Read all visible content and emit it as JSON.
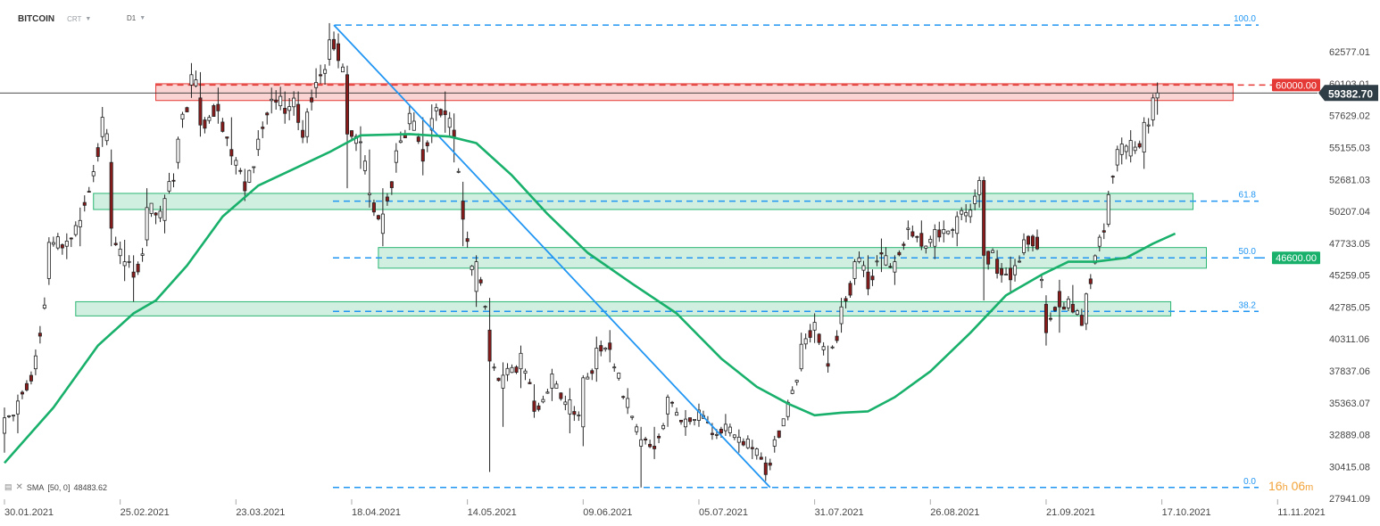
{
  "header": {
    "symbol": "BITCOIN",
    "type": "CRT",
    "timeframe": "D1"
  },
  "indicator": {
    "label": "SMA",
    "params": "[50, 0]",
    "value": "48483.62"
  },
  "timer": {
    "hours": "16",
    "h": "h",
    "minutes": "06",
    "m": "m"
  },
  "colors": {
    "up": "#ffffff",
    "down": "#8b1a1a",
    "wick": "#222222",
    "sma": "#18b06b",
    "fib": "#2196f3",
    "resistance": "#e53935",
    "zone": "#2bb673",
    "priceLabel": "#2f3e46",
    "level46600": "#18b06b"
  },
  "chart_data": {
    "type": "candlestick",
    "instrument": "BITCOIN",
    "timeframe": "D1",
    "ylim": [
      27941.09,
      65051
    ],
    "y_ticks": [
      62577.01,
      60103.01,
      57629.02,
      55155.03,
      52681.03,
      50207.04,
      47733.05,
      45259.05,
      42785.05,
      40311.06,
      37837.06,
      35363.07,
      32889.08,
      30415.08,
      27941.09
    ],
    "y_tick_labels": [
      "62577.01",
      "60103.01",
      "57629.02",
      "55155.03",
      "52681.03",
      "50207.04",
      "47733.05",
      "45259.05",
      "42785.05",
      "40311.06",
      "37837.06",
      "35363.07",
      "32889.08",
      "30415.08",
      "27941.09"
    ],
    "x_tick_labels": [
      "30.01.2021",
      "25.02.2021",
      "23.03.2021",
      "18.04.2021",
      "14.05.2021",
      "09.06.2021",
      "05.07.2021",
      "31.07.2021",
      "26.08.2021",
      "21.09.2021",
      "17.10.2021",
      "11.11.2021"
    ],
    "x_start_date": "2021-01-30",
    "tick_step_days": 26,
    "last_price": "59382.70",
    "resistance": {
      "label": "60000.00",
      "value": 60000,
      "zone": [
        58800,
        60100
      ],
      "start": "2021-03-05",
      "end": "2021-11-02"
    },
    "support_line": {
      "label": "46600.00",
      "value": 46600
    },
    "fib_levels": [
      {
        "label": "100.0",
        "value": 64650
      },
      {
        "label": "61.8",
        "value": 51000
      },
      {
        "label": "50.0",
        "value": 46600
      },
      {
        "label": "38.2",
        "value": 42450
      },
      {
        "label": "0.0",
        "value": 28800
      }
    ],
    "zones": [
      {
        "low": 50350,
        "high": 51600,
        "start": "2021-02-19",
        "end": "2021-10-24"
      },
      {
        "low": 45800,
        "high": 47400,
        "start": "2021-04-24",
        "end": "2021-10-27"
      },
      {
        "low": 42100,
        "high": 43200,
        "start": "2021-02-15",
        "end": "2021-10-19"
      }
    ],
    "trendline": {
      "from": {
        "date": "2021-04-14",
        "value": 64650
      },
      "to": {
        "date": "2021-07-21",
        "value": 28800
      }
    },
    "ohlc_anchors": [
      [
        "2021-01-30",
        33000,
        35000,
        31500,
        34200
      ],
      [
        "2021-02-02",
        34500,
        36000,
        33000,
        35500
      ],
      [
        "2021-02-06",
        38000,
        39500,
        37500,
        39000
      ],
      [
        "2021-02-09",
        45000,
        48200,
        44500,
        47800
      ],
      [
        "2021-02-13",
        47500,
        48500,
        46500,
        47900
      ],
      [
        "2021-02-16",
        49000,
        50500,
        47500,
        49500
      ],
      [
        "2021-02-21",
        56000,
        58300,
        55200,
        57500
      ],
      [
        "2021-02-23",
        54000,
        55000,
        47500,
        48900
      ],
      [
        "2021-02-26",
        46000,
        48000,
        44800,
        46300
      ],
      [
        "2021-02-28",
        45500,
        46800,
        43200,
        45100
      ],
      [
        "2021-03-03",
        48000,
        52000,
        47500,
        50500
      ],
      [
        "2021-03-07",
        49500,
        51500,
        48500,
        51200
      ],
      [
        "2021-03-10",
        54000,
        56000,
        53500,
        55800
      ],
      [
        "2021-03-13",
        60000,
        61700,
        59000,
        60800
      ],
      [
        "2021-03-15",
        59000,
        61000,
        56000,
        56900
      ],
      [
        "2021-03-19",
        58500,
        59800,
        57000,
        58000
      ],
      [
        "2021-03-22",
        55000,
        57500,
        53800,
        54500
      ],
      [
        "2021-03-25",
        52500,
        53500,
        51000,
        51800
      ],
      [
        "2021-03-28",
        55000,
        56500,
        54500,
        55800
      ],
      [
        "2021-03-31",
        58800,
        59800,
        57800,
        58900
      ],
      [
        "2021-04-03",
        58200,
        59500,
        57000,
        57800
      ],
      [
        "2021-04-06",
        58500,
        59500,
        56500,
        57100
      ],
      [
        "2021-04-08",
        56000,
        58200,
        55500,
        57900
      ],
      [
        "2021-04-10",
        59800,
        61300,
        59000,
        60200
      ],
      [
        "2021-04-13",
        62000,
        64800,
        61500,
        63500
      ],
      [
        "2021-04-15",
        63200,
        64000,
        61300,
        61900
      ],
      [
        "2021-04-17",
        60800,
        61500,
        52000,
        56200
      ],
      [
        "2021-04-20",
        55600,
        56800,
        53500,
        55600
      ],
      [
        "2021-04-22",
        51500,
        55000,
        50500,
        51600
      ],
      [
        "2021-04-25",
        48500,
        52000,
        47500,
        50000
      ],
      [
        "2021-04-28",
        54000,
        55500,
        53200,
        54900
      ],
      [
        "2021-05-01",
        57000,
        58500,
        56500,
        57800
      ],
      [
        "2021-05-04",
        55000,
        57500,
        53000,
        54100
      ],
      [
        "2021-05-06",
        56500,
        58500,
        55500,
        57400
      ],
      [
        "2021-05-09",
        58000,
        59500,
        56300,
        57700
      ],
      [
        "2021-05-11",
        56500,
        57800,
        54000,
        56000
      ],
      [
        "2021-05-13",
        51000,
        52500,
        47500,
        49600
      ],
      [
        "2021-05-16",
        44000,
        46800,
        42800,
        46300
      ],
      [
        "2021-05-19",
        41000,
        43500,
        30000,
        38600
      ],
      [
        "2021-05-22",
        36500,
        38500,
        33500,
        37500
      ],
      [
        "2021-05-26",
        38000,
        39800,
        36500,
        39200
      ],
      [
        "2021-05-29",
        35500,
        36800,
        34200,
        34700
      ],
      [
        "2021-06-02",
        36500,
        38000,
        35500,
        37600
      ],
      [
        "2021-06-06",
        34500,
        36500,
        33000,
        35600
      ],
      [
        "2021-06-09",
        33500,
        37500,
        32000,
        37300
      ],
      [
        "2021-06-12",
        38000,
        40500,
        37000,
        39600
      ],
      [
        "2021-06-15",
        40000,
        41000,
        38500,
        39500
      ],
      [
        "2021-06-19",
        35000,
        36500,
        34500,
        35700
      ],
      [
        "2021-06-22",
        32000,
        33500,
        28800,
        32500
      ],
      [
        "2021-06-25",
        32000,
        33500,
        31000,
        31800
      ],
      [
        "2021-06-28",
        34500,
        36000,
        33500,
        35800
      ],
      [
        "2021-07-02",
        33500,
        34800,
        32800,
        34100
      ],
      [
        "2021-07-05",
        34000,
        35300,
        33500,
        34800
      ],
      [
        "2021-07-08",
        33000,
        33800,
        32500,
        32900
      ],
      [
        "2021-07-11",
        33200,
        34500,
        32800,
        33700
      ],
      [
        "2021-07-14",
        32300,
        33300,
        31500,
        32700
      ],
      [
        "2021-07-17",
        31900,
        32500,
        31000,
        31800
      ],
      [
        "2021-07-20",
        30700,
        31200,
        29300,
        29800
      ],
      [
        "2021-07-22",
        32000,
        32800,
        31500,
        32500
      ],
      [
        "2021-07-25",
        34300,
        35600,
        34000,
        35400
      ],
      [
        "2021-07-28",
        38000,
        40800,
        37800,
        39900
      ],
      [
        "2021-07-31",
        41000,
        42300,
        40000,
        41600
      ],
      [
        "2021-08-03",
        38400,
        39800,
        37700,
        38200
      ],
      [
        "2021-08-06",
        41500,
        43500,
        40800,
        42800
      ],
      [
        "2021-08-09",
        45000,
        46500,
        44500,
        46300
      ],
      [
        "2021-08-12",
        45500,
        46800,
        43700,
        44200
      ],
      [
        "2021-08-15",
        47000,
        48100,
        45500,
        46900
      ],
      [
        "2021-08-18",
        45500,
        46800,
        44500,
        46300
      ],
      [
        "2021-08-21",
        48800,
        49500,
        48000,
        48900
      ],
      [
        "2021-08-24",
        48500,
        49500,
        47200,
        47500
      ],
      [
        "2021-08-27",
        47500,
        49200,
        46500,
        48800
      ],
      [
        "2021-08-29",
        48500,
        49500,
        47800,
        48800
      ],
      [
        "2021-09-01",
        48500,
        50200,
        47500,
        49800
      ],
      [
        "2021-09-04",
        49800,
        50800,
        49300,
        50300
      ],
      [
        "2021-09-06",
        51500,
        52900,
        50500,
        52600
      ],
      [
        "2021-09-07",
        52600,
        52900,
        43300,
        46800
      ],
      [
        "2021-09-10",
        46500,
        47200,
        45000,
        45400
      ],
      [
        "2021-09-13",
        45800,
        46700,
        44000,
        44900
      ],
      [
        "2021-09-16",
        47000,
        48500,
        46800,
        48000
      ],
      [
        "2021-09-19",
        48200,
        48800,
        47200,
        47300
      ],
      [
        "2021-09-21",
        43000,
        43700,
        39800,
        40800
      ],
      [
        "2021-09-24",
        44000,
        44900,
        40800,
        42800
      ],
      [
        "2021-09-27",
        43000,
        44500,
        42300,
        42400
      ],
      [
        "2021-09-30",
        41500,
        43900,
        41000,
        43800
      ],
      [
        "2021-10-03",
        47500,
        48400,
        47100,
        48200
      ],
      [
        "2021-10-05",
        49200,
        51800,
        49000,
        51500
      ],
      [
        "2021-10-07",
        53800,
        55300,
        53300,
        55000
      ],
      [
        "2021-10-10",
        54500,
        56500,
        54000,
        55700
      ],
      [
        "2021-10-13",
        54800,
        57500,
        53500,
        57100
      ],
      [
        "2021-10-15",
        57300,
        59300,
        56800,
        59000
      ],
      [
        "2021-10-16",
        59000,
        60200,
        57700,
        59382.7
      ]
    ],
    "sma_anchors": [
      [
        "2021-01-30",
        30700
      ],
      [
        "2021-02-10",
        35000
      ],
      [
        "2021-02-20",
        39800
      ],
      [
        "2021-02-28",
        42300
      ],
      [
        "2021-03-05",
        43300
      ],
      [
        "2021-03-12",
        46000
      ],
      [
        "2021-03-20",
        49800
      ],
      [
        "2021-03-28",
        52200
      ],
      [
        "2021-04-05",
        53500
      ],
      [
        "2021-04-13",
        54800
      ],
      [
        "2021-04-20",
        56100
      ],
      [
        "2021-05-01",
        56200
      ],
      [
        "2021-05-10",
        56000
      ],
      [
        "2021-05-16",
        55500
      ],
      [
        "2021-05-24",
        53000
      ],
      [
        "2021-06-01",
        50000
      ],
      [
        "2021-06-10",
        47000
      ],
      [
        "2021-06-20",
        44600
      ],
      [
        "2021-06-30",
        42300
      ],
      [
        "2021-07-10",
        38800
      ],
      [
        "2021-07-18",
        36600
      ],
      [
        "2021-07-25",
        35300
      ],
      [
        "2021-07-31",
        34400
      ],
      [
        "2021-08-06",
        34600
      ],
      [
        "2021-08-12",
        34700
      ],
      [
        "2021-08-18",
        35800
      ],
      [
        "2021-08-26",
        37800
      ],
      [
        "2021-09-04",
        40800
      ],
      [
        "2021-09-12",
        43700
      ],
      [
        "2021-09-20",
        45300
      ],
      [
        "2021-09-26",
        46300
      ],
      [
        "2021-10-02",
        46300
      ],
      [
        "2021-10-09",
        46600
      ],
      [
        "2021-10-15",
        47700
      ],
      [
        "2021-10-20",
        48483.62
      ]
    ]
  }
}
